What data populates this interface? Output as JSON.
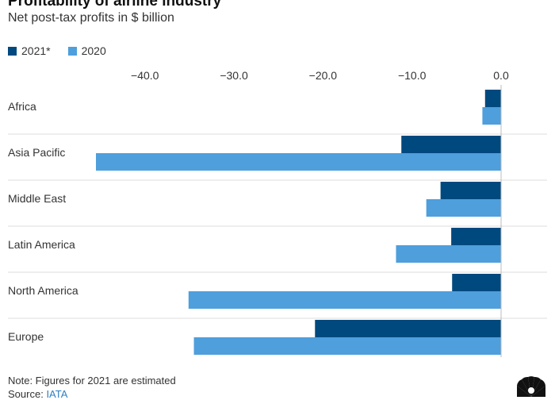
{
  "header": {
    "title": "Profitability of airline industry",
    "subtitle": "Net post-tax profits in $ billion"
  },
  "footer": {
    "note": "Note: Figures for 2021 are estimated",
    "source_label": "Source:",
    "source_name": "IATA"
  },
  "colors": {
    "series_2021": "#00497f",
    "series_2020": "#4e9fdc",
    "gridline": "#dddddd",
    "zero_line": "#bbbbbb",
    "text": "#333333"
  },
  "logo": {
    "icon": "peacock-logo-icon"
  },
  "chart_data": {
    "type": "bar",
    "orientation": "horizontal",
    "title": "Profitability of airline industry",
    "subtitle": "Net post-tax profits in $ billion",
    "xlabel": "",
    "ylabel": "",
    "xlim": [
      -45.5,
      0
    ],
    "grid": true,
    "legend_position": "top-left",
    "categories": [
      "Africa",
      "Asia Pacific",
      "Middle East",
      "Latin America",
      "North America",
      "Europe"
    ],
    "x_ticks": [
      -40,
      -30,
      -20,
      -10,
      0
    ],
    "x_tick_labels": [
      "−40.0",
      "−30.0",
      "−20.0",
      "−10.0",
      "0.0"
    ],
    "series": [
      {
        "name": "2021*",
        "values": [
          -1.8,
          -11.2,
          -6.8,
          -5.6,
          -5.5,
          -20.9
        ]
      },
      {
        "name": "2020",
        "values": [
          -2.1,
          -45.5,
          -8.4,
          -11.8,
          -35.1,
          -34.5
        ]
      }
    ]
  }
}
